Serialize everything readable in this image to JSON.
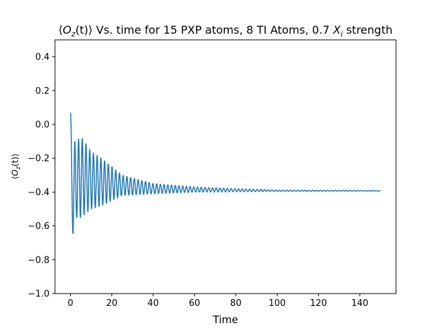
{
  "chart_data": {
    "type": "line",
    "title_parts": {
      "open": "⟨",
      "o": "O",
      "sub": "z",
      "t": "(t)",
      "close": "⟩",
      "rest": " Vs. time for 15 PXP atoms, 8 TI Atoms, 0.7 ",
      "x": "X",
      "xsub": "i",
      "tail": " strength"
    },
    "xlabel": "Time",
    "ylabel_parts": {
      "open": "⟨",
      "o": "O",
      "sub": "z",
      "t": "(t)",
      "close": "⟩"
    },
    "xlim": [
      -7.5,
      157.5
    ],
    "ylim": [
      -1.0,
      0.5
    ],
    "xticks": [
      0,
      20,
      40,
      60,
      80,
      100,
      120,
      140
    ],
    "xtick_labels": [
      "0",
      "20",
      "40",
      "60",
      "80",
      "100",
      "120",
      "140"
    ],
    "yticks": [
      -1.0,
      -0.8,
      -0.6,
      -0.4,
      -0.2,
      0.0,
      0.2,
      0.4
    ],
    "ytick_labels": [
      "−1.0",
      "−0.8",
      "−0.6",
      "−0.4",
      "−0.2",
      "0.0",
      "0.2",
      "0.4"
    ],
    "grid": false,
    "series": [
      {
        "color": "#1f77b4",
        "x_range": [
          0,
          150
        ],
        "start_value": 0.07,
        "baseline": -0.393,
        "peaks": [
          [
            3,
            -0.1
          ],
          [
            5,
            -0.07
          ],
          [
            10,
            -0.16
          ],
          [
            15,
            -0.2
          ],
          [
            25,
            -0.3
          ],
          [
            40,
            -0.35
          ],
          [
            60,
            -0.37
          ],
          [
            80,
            -0.38
          ],
          [
            100,
            -0.388
          ],
          [
            130,
            -0.39
          ],
          [
            150,
            -0.392
          ]
        ],
        "troughs": [
          [
            1.2,
            -0.645
          ],
          [
            3,
            -0.55
          ],
          [
            5,
            -0.55
          ],
          [
            10,
            -0.5
          ],
          [
            15,
            -0.48
          ],
          [
            25,
            -0.42
          ],
          [
            40,
            -0.41
          ],
          [
            60,
            -0.4
          ],
          [
            80,
            -0.398
          ],
          [
            100,
            -0.396
          ],
          [
            150,
            -0.394
          ]
        ],
        "oscillation_period": 1.8
      }
    ]
  }
}
